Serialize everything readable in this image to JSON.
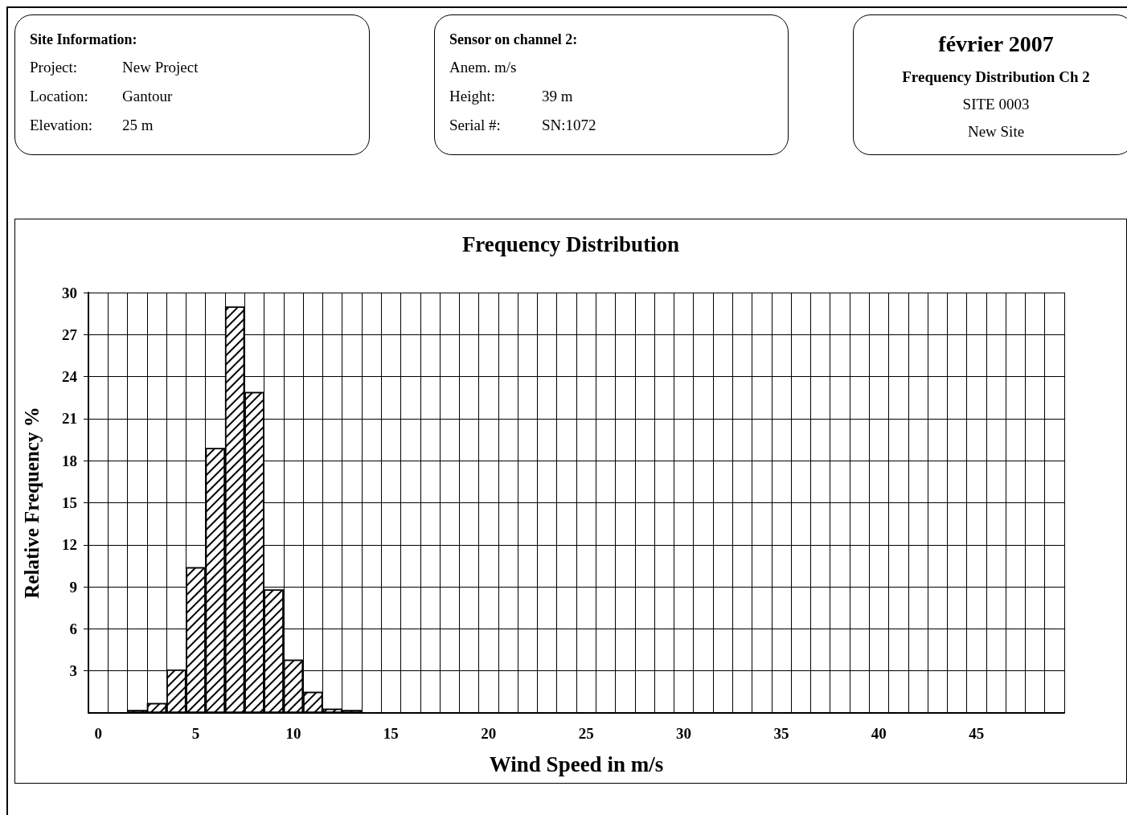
{
  "chart_data": {
    "type": "histogram",
    "title": "Frequency Distribution",
    "xlabel": "Wind Speed in m/s",
    "ylabel": "Relative Frequency %",
    "annotations": [
      "Site Information:",
      "Project:",
      "New Project",
      "Location:",
      "Gantour",
      "Elevation:",
      "25 m",
      "Sensor on channel 2:",
      "Anem. m/s",
      "Height:",
      "39 m",
      "Serial #:",
      "SN:1072",
      "février 2007",
      "Frequency Distribution Ch 2",
      "SITE 0003",
      "New Site"
    ],
    "bins": [
      -0.5,
      0.5,
      1.5,
      2.5,
      3.5,
      4.5,
      5.5,
      6.5,
      7.5,
      8.5,
      9.5,
      10.5,
      11.5,
      12.5,
      13.5,
      14.5,
      15.5,
      16.5,
      17.5,
      18.5,
      19.5,
      20.5,
      21.5,
      22.5,
      23.5,
      24.5,
      25.5,
      26.5,
      27.5,
      28.5,
      29.5,
      30.5,
      31.5,
      32.5,
      33.5,
      34.5,
      35.5,
      36.5,
      37.5,
      38.5,
      39.5,
      40.5,
      41.5,
      42.5,
      43.5,
      44.5,
      45.5,
      46.5,
      47.5,
      48.5,
      49.5
    ],
    "values": [
      0,
      0,
      0.2,
      0.7,
      3.1,
      10.4,
      18.9,
      29,
      22.9,
      8.8,
      3.8,
      1.5,
      0.3,
      0.2,
      0,
      0,
      0,
      0,
      0,
      0,
      0,
      0,
      0,
      0,
      0,
      0,
      0,
      0,
      0,
      0,
      0,
      0,
      0,
      0,
      0,
      0,
      0,
      0,
      0,
      0,
      0,
      0,
      0,
      0,
      0,
      0,
      0,
      0,
      0,
      0
    ],
    "color": "#000000",
    "xlim": [
      -0.5,
      49.5
    ],
    "xticks": [
      0,
      5,
      10,
      15,
      20,
      25,
      30,
      35,
      40,
      45
    ],
    "ylim": [
      0,
      30
    ],
    "yticks": [
      3,
      6,
      9,
      12,
      15,
      18,
      21,
      24,
      27,
      30
    ],
    "grid": true
  }
}
